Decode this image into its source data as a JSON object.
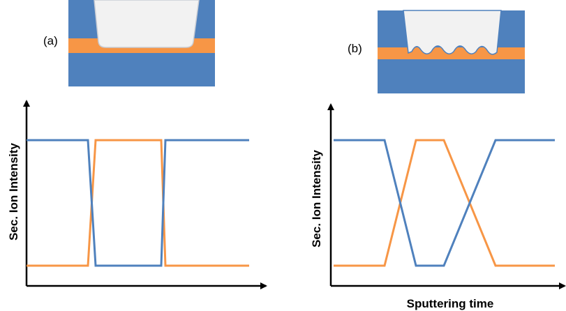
{
  "panels": [
    {
      "label": "(a)",
      "y_axis_label": "Sec. Ion Intensity"
    },
    {
      "label": "(b)",
      "y_axis_label": "Sec. Ion Intensity",
      "x_axis_label": "Sputtering time"
    }
  ]
}
